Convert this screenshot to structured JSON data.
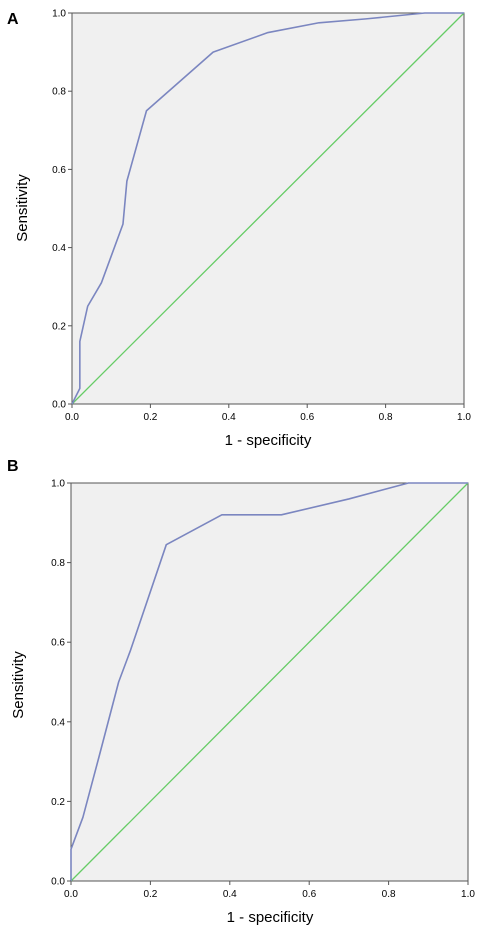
{
  "chart_data": [
    {
      "panel": "A",
      "type": "line",
      "xlabel": "1 - specificity",
      "ylabel": "Sensitivity",
      "xlim": [
        0,
        1
      ],
      "ylim": [
        0,
        1
      ],
      "xticks": [
        "0.0",
        "0.2",
        "0.4",
        "0.6",
        "0.8",
        "1.0"
      ],
      "yticks": [
        "0.0",
        "0.2",
        "0.4",
        "0.6",
        "0.8",
        "1.0"
      ],
      "colors": {
        "roc": "#7b86c0",
        "reference": "#66cc66",
        "plot_bg": "#f0f0f0"
      },
      "series": [
        {
          "x": [
            0.0,
            0.02,
            0.02,
            0.04,
            0.075,
            0.13,
            0.14,
            0.19,
            0.36,
            0.5,
            0.63,
            0.75,
            0.9,
            1.0
          ],
          "y": [
            0.0,
            0.04,
            0.16,
            0.25,
            0.31,
            0.46,
            0.57,
            0.75,
            0.9,
            0.95,
            0.975,
            0.985,
            1.0,
            1.0
          ]
        },
        {
          "x": [
            0,
            1
          ],
          "y": [
            0,
            1
          ]
        }
      ]
    },
    {
      "panel": "B",
      "type": "line",
      "xlabel": "1 - specificity",
      "ylabel": "Sensitivity",
      "xlim": [
        0,
        1
      ],
      "ylim": [
        0,
        1
      ],
      "xticks": [
        "0.0",
        "0.2",
        "0.4",
        "0.6",
        "0.8",
        "1.0"
      ],
      "yticks": [
        "0.0",
        "0.2",
        "0.4",
        "0.6",
        "0.8",
        "1.0"
      ],
      "colors": {
        "roc": "#7b86c0",
        "reference": "#66cc66",
        "plot_bg": "#f0f0f0"
      },
      "series": [
        {
          "x": [
            0.0,
            0.0,
            0.03,
            0.07,
            0.12,
            0.15,
            0.24,
            0.38,
            0.53,
            0.7,
            0.85,
            1.0
          ],
          "y": [
            0.0,
            0.08,
            0.16,
            0.31,
            0.5,
            0.58,
            0.845,
            0.92,
            0.92,
            0.96,
            1.0,
            1.0
          ]
        },
        {
          "x": [
            0,
            1
          ],
          "y": [
            0,
            1
          ]
        }
      ]
    }
  ]
}
